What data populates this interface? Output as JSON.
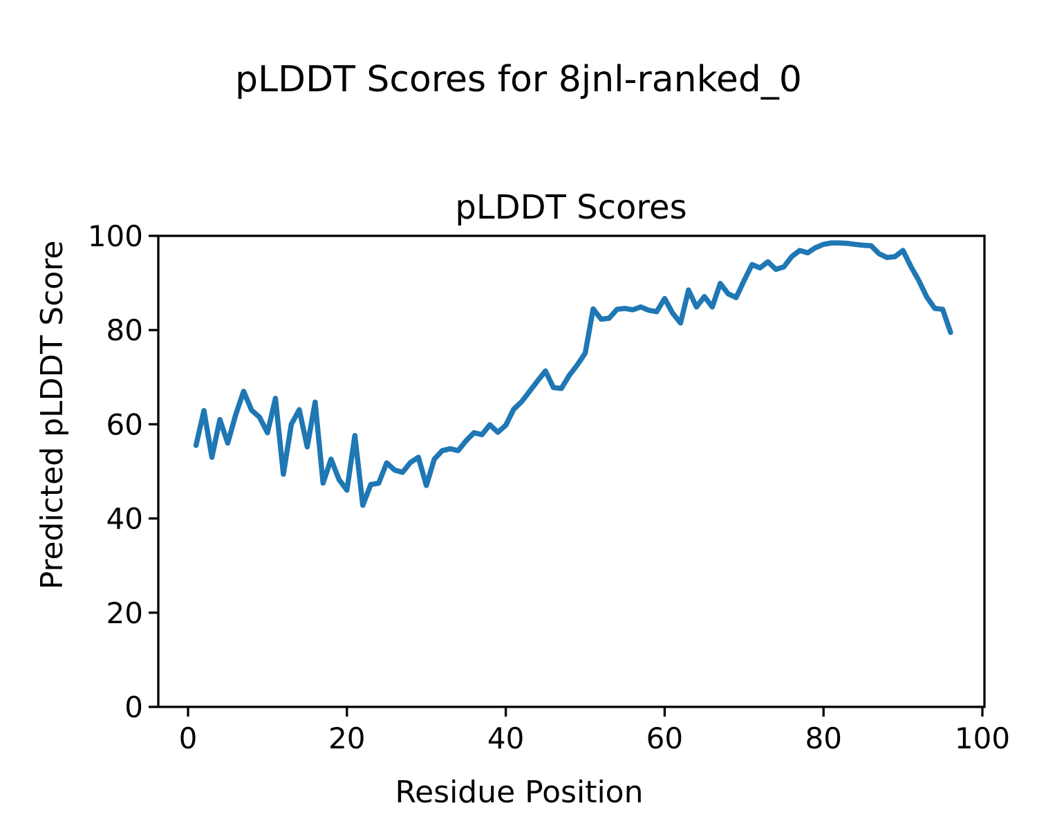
{
  "figure": {
    "suptitle": "pLDDT Scores for 8jnl-ranked_0",
    "axes_title": "pLDDT Scores",
    "xlabel": "Residue Position",
    "ylabel": "Predicted pLDDT Score"
  },
  "chart_data": {
    "type": "line",
    "suptitle": "pLDDT Scores for 8jnl-ranked_0",
    "title": "pLDDT Scores",
    "xlabel": "Residue Position",
    "ylabel": "Predicted pLDDT Score",
    "xlim": [
      -3.75,
      100.75
    ],
    "ylim": [
      0,
      100
    ],
    "x_ticks": [
      0,
      20,
      40,
      60,
      80,
      100
    ],
    "y_ticks": [
      0,
      20,
      40,
      60,
      80,
      100
    ],
    "grid": false,
    "legend": "none",
    "line_color": "#1f77b4",
    "axis_color": "#000000",
    "series_name": "pLDDT",
    "x": [
      1,
      2,
      3,
      4,
      5,
      6,
      7,
      8,
      9,
      10,
      11,
      12,
      13,
      14,
      15,
      16,
      17,
      18,
      19,
      20,
      21,
      22,
      23,
      24,
      25,
      26,
      27,
      28,
      29,
      30,
      31,
      32,
      33,
      34,
      35,
      36,
      37,
      38,
      39,
      40,
      41,
      42,
      43,
      44,
      45,
      46,
      47,
      48,
      49,
      50,
      51,
      52,
      53,
      54,
      55,
      56,
      57,
      58,
      59,
      60,
      61,
      62,
      63,
      64,
      65,
      66,
      67,
      68,
      69,
      70,
      71,
      72,
      73,
      74,
      75,
      76,
      77,
      78,
      79,
      80,
      81,
      82,
      83,
      84,
      85,
      86,
      87,
      88,
      89,
      90,
      91,
      92,
      93,
      94,
      95,
      96
    ],
    "values": [
      55.5,
      62.9,
      53,
      61,
      56,
      62,
      67,
      63,
      61.5,
      58.2,
      65.5,
      49.4,
      60,
      63.1,
      55.2,
      64.7,
      47.5,
      52.6,
      48.3,
      46,
      57.6,
      42.8,
      47.2,
      47.5,
      51.8,
      50.3,
      49.8,
      51.9,
      53,
      47,
      52.6,
      54.4,
      54.8,
      54.4,
      56.5,
      58.2,
      57.8,
      59.9,
      58.3,
      59.8,
      63.2,
      64.8,
      67,
      69.2,
      71.3,
      67.8,
      67.6,
      70.4,
      72.6,
      75.1,
      84.5,
      82.3,
      82.5,
      84.4,
      84.6,
      84.3,
      84.9,
      84.2,
      83.9,
      86.7,
      83.6,
      81.5,
      88.5,
      84.9,
      87.1,
      84.9,
      89.9,
      87.7,
      86.9,
      90.5,
      93.9,
      93.2,
      94.5,
      92.9,
      93.4,
      95.6,
      96.9,
      96.4,
      97.5,
      98.2,
      98.5,
      98.5,
      98.4,
      98.2,
      98,
      97.9,
      96.2,
      95.4,
      95.6,
      96.9,
      93.5,
      90.5,
      87,
      84.6,
      84.4,
      79.5
    ]
  }
}
